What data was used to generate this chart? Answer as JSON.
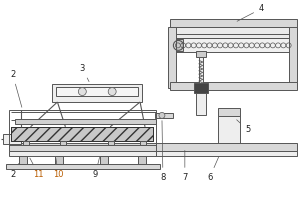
{
  "bg_color": "#ffffff",
  "lc": "#555555",
  "dc": "#333333",
  "figsize": [
    3.0,
    2.0
  ],
  "dpi": 100,
  "label_fs": 6.0,
  "label_color": "#222222",
  "orange_color": "#b85c00"
}
